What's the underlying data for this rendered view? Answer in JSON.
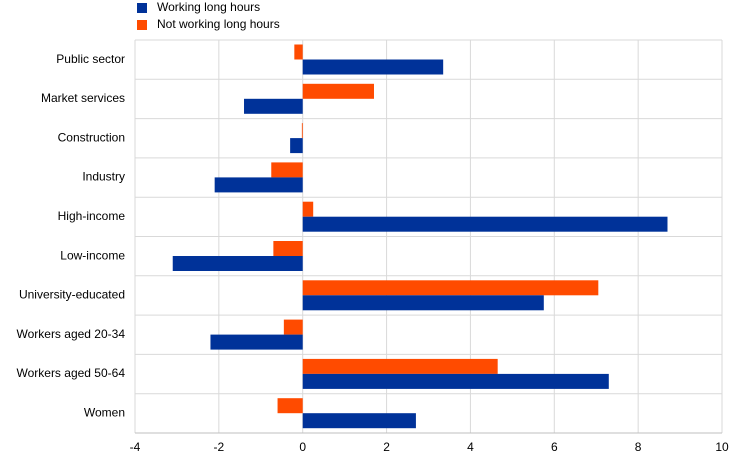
{
  "chart_data": {
    "type": "hbar",
    "categories": [
      "Public sector",
      "Market services",
      "Construction",
      "Industry",
      "High-income",
      "Low-income",
      "University-educated",
      "Workers aged 20-34",
      "Workers aged 50-64",
      "Women"
    ],
    "series": [
      {
        "name": "Working long hours",
        "color": "#003299",
        "values": [
          3.35,
          -1.4,
          -0.3,
          -2.1,
          8.7,
          -3.1,
          5.75,
          -2.2,
          7.3,
          2.7
        ]
      },
      {
        "name": "Not working long hours",
        "color": "#ff4b00",
        "values": [
          -0.2,
          1.7,
          -0.02,
          -0.75,
          0.25,
          -0.7,
          7.05,
          -0.45,
          4.65,
          -0.6
        ]
      }
    ],
    "xlim": [
      -4,
      10
    ],
    "xticks": [
      -4,
      -2,
      0,
      2,
      4,
      6,
      8,
      10
    ],
    "grid": true,
    "legend": "top-left"
  }
}
